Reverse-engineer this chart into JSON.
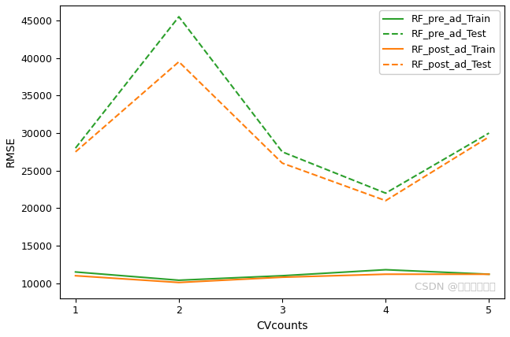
{
  "x": [
    1,
    2,
    3,
    4,
    5
  ],
  "RF_pre_ad_Train": [
    11500,
    10400,
    11000,
    11800,
    11200
  ],
  "RF_pre_ad_Test": [
    28000,
    45500,
    27500,
    22000,
    30000
  ],
  "RF_post_ad_Train": [
    11000,
    10100,
    10800,
    11200,
    11200
  ],
  "RF_post_ad_Test": [
    27500,
    39500,
    26000,
    21000,
    29500
  ],
  "green_color": "#2ca02c",
  "orange_color": "#ff7f0e",
  "xlabel": "CVcounts",
  "ylabel": "RMSE",
  "watermark": "CSDN @虚心求知的熊",
  "ylim": [
    8000,
    47000
  ],
  "xlim": [
    0.85,
    5.15
  ],
  "yticks": [
    10000,
    15000,
    20000,
    25000,
    30000,
    35000,
    40000,
    45000
  ],
  "xticks": [
    1,
    2,
    3,
    4,
    5
  ],
  "legend_fontsize": 9,
  "axis_fontsize": 10,
  "linewidth": 1.5,
  "figwidth": 6.47,
  "figheight": 4.28,
  "dpi": 100
}
